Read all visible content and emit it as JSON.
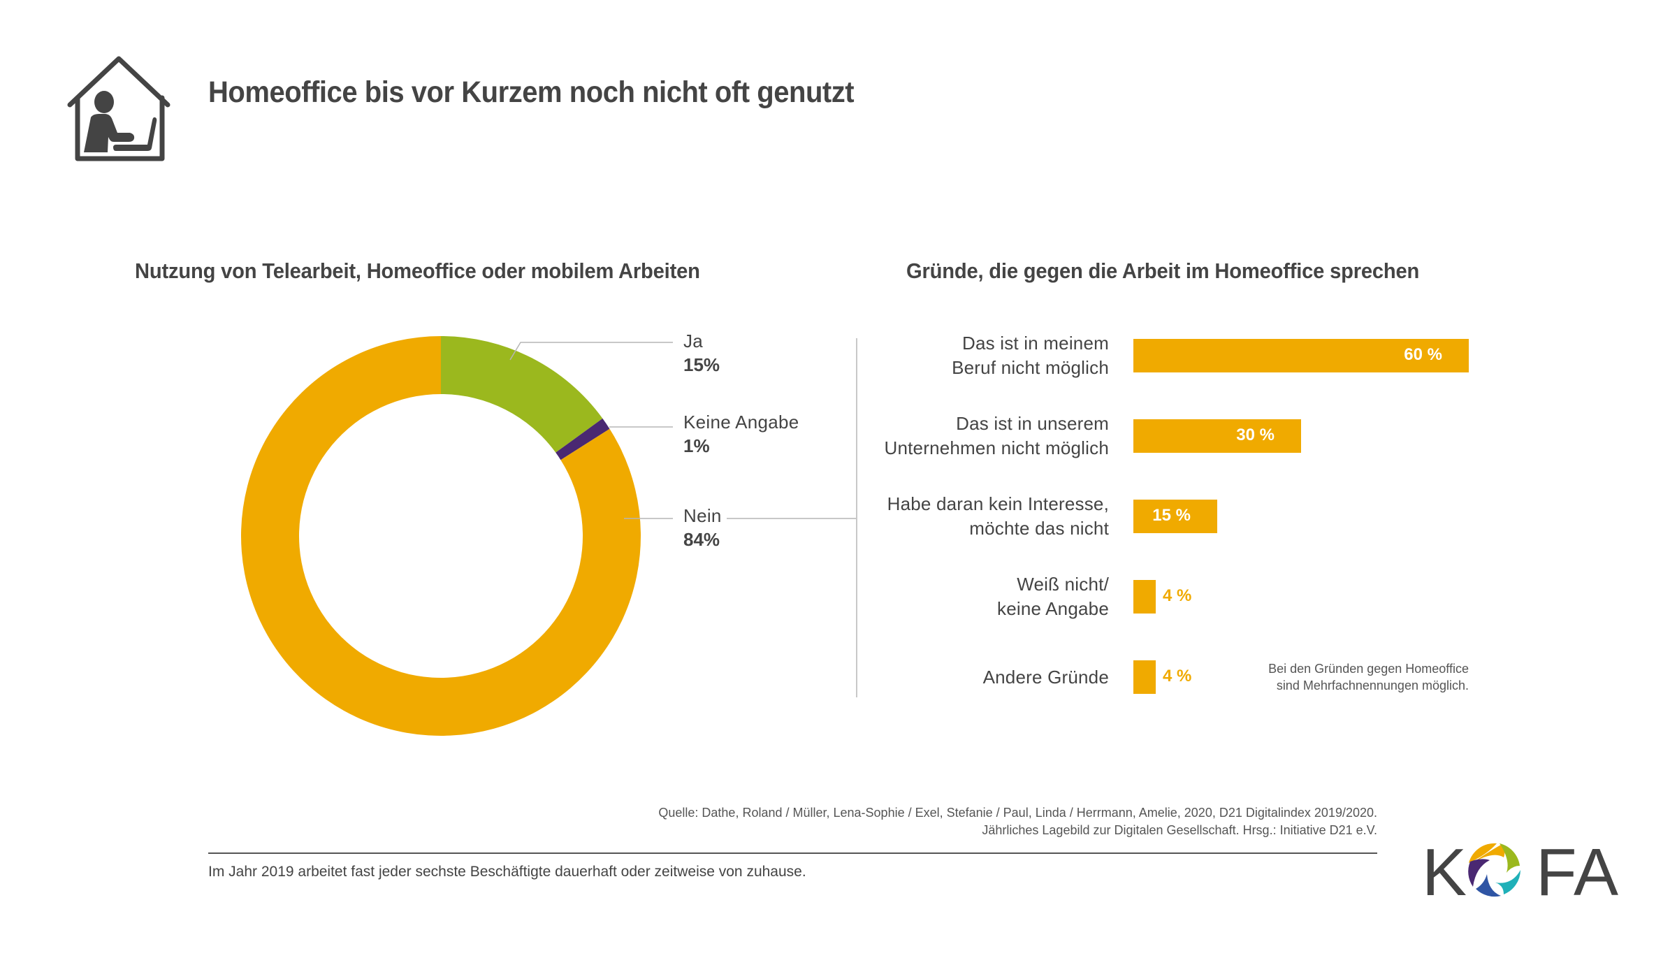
{
  "header": {
    "title": "Homeoffice bis vor Kurzem noch nicht oft genutzt",
    "icon": "home-office-icon"
  },
  "colors": {
    "orange": "#F0AA00",
    "green": "#9BB81E",
    "purple": "#4A2872",
    "text": "#444444",
    "rule": "#555555",
    "leader": "#B5B5B5"
  },
  "chart_data": [
    {
      "type": "pie",
      "variant": "donut",
      "title": "Nutzung von Telearbeit, Homeoffice oder mobilem Arbeiten",
      "slices": [
        {
          "label": "Ja",
          "value": 15,
          "value_label": "15%",
          "color": "#9BB81E"
        },
        {
          "label": "Keine Angabe",
          "value": 1,
          "value_label": "1%",
          "color": "#4A2872"
        },
        {
          "label": "Nein",
          "value": 84,
          "value_label": "84%",
          "color": "#F0AA00"
        }
      ],
      "start_angle_deg": 0,
      "direction": "clockwise",
      "legend": "right"
    },
    {
      "type": "bar",
      "orientation": "horizontal",
      "title": "Gründe, die gegen die Arbeit im Homeoffice sprechen",
      "categories": [
        [
          "Das ist in meinem",
          "Beruf nicht möglich"
        ],
        [
          "Das ist in unserem",
          "Unternehmen nicht möglich"
        ],
        [
          "Habe daran kein Interesse,",
          "möchte das nicht"
        ],
        [
          "Weiß nicht/",
          "keine Angabe"
        ],
        [
          "Andere Gründe"
        ]
      ],
      "values": [
        60,
        30,
        15,
        4,
        4
      ],
      "value_labels": [
        "60 %",
        "30 %",
        "15 %",
        "4 %",
        "4 %"
      ],
      "unit": "%",
      "xlim": [
        0,
        60
      ],
      "grid": false,
      "bar_color": "#F0AA00",
      "footnote": [
        "Bei den Gründen gegen Homeoffice",
        "sind Mehrfachnennungen möglich."
      ]
    }
  ],
  "footer": {
    "source_lines": [
      "Quelle: Dathe, Roland / Müller, Lena-Sophie / Exel, Stefanie / Paul, Linda / Herrmann, Amelie, 2020, D21 Digitalindex 2019/2020.",
      "Jährliches Lagebild zur Digitalen Gesellschaft. Hrsg.: Initiative D21 e.V."
    ],
    "summary": "Im Jahr 2019 arbeitet fast jeder sechste Beschäftigte dauerhaft oder zeitweise von zuhause.",
    "logo": {
      "letters": [
        "K",
        "F",
        "A"
      ],
      "name": "KOFA",
      "ring_colors": [
        "#F0AA00",
        "#9BB81E",
        "#1FB0B8",
        "#2F55A4",
        "#4A2872"
      ]
    }
  }
}
